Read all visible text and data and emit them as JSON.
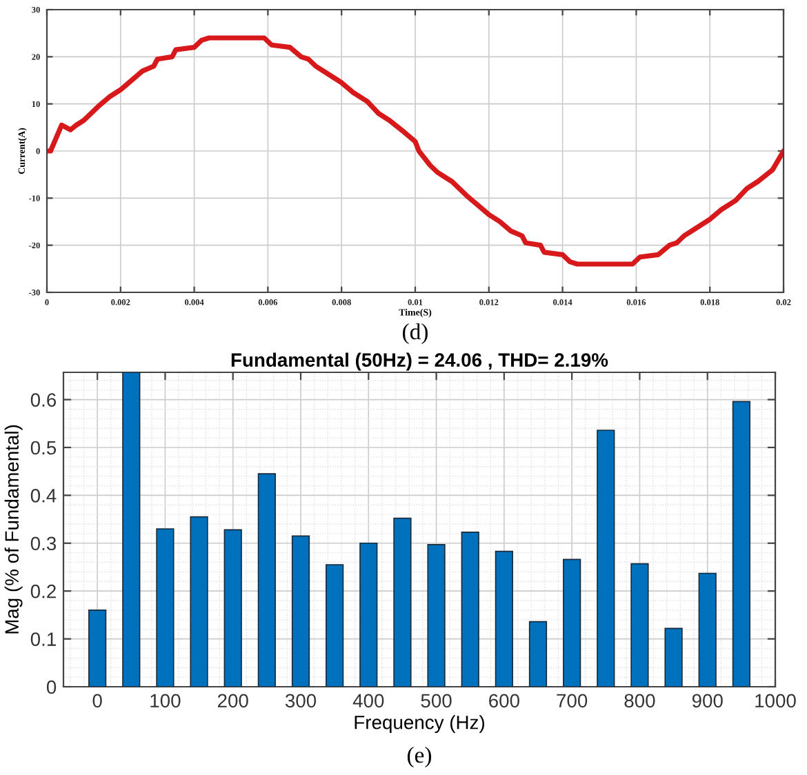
{
  "chart_data": [
    {
      "type": "line",
      "xlabel": "Time(S)",
      "ylabel": "Current(A)",
      "annotations": [
        "(d)"
      ],
      "grid": true,
      "series": [
        {
          "color": "#d7191c",
          "x": [
            0,
            0.0001,
            0.0004,
            0.00064,
            0.0008,
            0.001,
            0.0012,
            0.0014,
            0.0017,
            0.002,
            0.0023,
            0.0026,
            0.0029,
            0.003,
            0.0034,
            0.0035,
            0.004,
            0.0042,
            0.0044,
            0.0059,
            0.0061,
            0.0066,
            0.0069,
            0.0071,
            0.0073,
            0.0077,
            0.008,
            0.0083,
            0.0087,
            0.009,
            0.0093,
            0.0097,
            0.01,
            0.0101,
            0.0104,
            0.0106,
            0.0108,
            0.011,
            0.0112,
            0.0114,
            0.0117,
            0.012,
            0.0123,
            0.0126,
            0.0129,
            0.013,
            0.0134,
            0.0135,
            0.014,
            0.0142,
            0.0144,
            0.0159,
            0.0161,
            0.0166,
            0.0169,
            0.0171,
            0.0173,
            0.0177,
            0.018,
            0.0183,
            0.0187,
            0.019,
            0.0193,
            0.0197,
            0.02
          ],
          "values": [
            0,
            0,
            5.5,
            4.5,
            5.5,
            6.5,
            8,
            9.5,
            11.5,
            13,
            15,
            17,
            18,
            19.5,
            20,
            21.5,
            22,
            23.5,
            24,
            24,
            22.5,
            22,
            20,
            19.5,
            18,
            16,
            14.5,
            12.5,
            10.5,
            8,
            6.5,
            4,
            2,
            0,
            -3,
            -4.5,
            -5.5,
            -6.5,
            -8,
            -9.5,
            -11.5,
            -13.5,
            -15,
            -17,
            -18,
            -19.5,
            -20,
            -21.5,
            -22,
            -23.5,
            -24,
            -24,
            -22.5,
            -22,
            -20,
            -19.5,
            -18,
            -16,
            -14.5,
            -12.5,
            -10.5,
            -8,
            -6.5,
            -4,
            0
          ]
        }
      ],
      "xlim": [
        0,
        0.02
      ],
      "xticks": [
        0,
        0.002,
        0.004,
        0.006,
        0.008,
        0.01,
        0.012,
        0.014,
        0.016,
        0.018,
        0.02
      ],
      "ylim": [
        -30,
        30
      ],
      "yticks": [
        -30,
        -20,
        -10,
        0,
        10,
        20,
        30
      ]
    },
    {
      "type": "bar",
      "title": "Fundamental (50Hz) = 24.06 , THD= 2.19%",
      "xlabel": "Frequency (Hz)",
      "ylabel": "Mag (% of Fundamental)",
      "annotations": [
        "(e)"
      ],
      "grid": true,
      "color": "#0072bd",
      "x": [
        0,
        50,
        100,
        150,
        200,
        250,
        300,
        350,
        400,
        450,
        500,
        550,
        600,
        650,
        700,
        750,
        800,
        850,
        900,
        950
      ],
      "values": [
        0.16,
        0.657,
        0.33,
        0.355,
        0.328,
        0.445,
        0.315,
        0.255,
        0.3,
        0.352,
        0.297,
        0.323,
        0.283,
        0.136,
        0.266,
        0.536,
        0.257,
        0.122,
        0.237,
        0.596
      ],
      "xlim": [
        -50,
        1000
      ],
      "xticks": [
        0,
        100,
        200,
        300,
        400,
        500,
        600,
        700,
        800,
        900,
        1000
      ],
      "ylim": [
        0,
        0.657
      ],
      "yticks": [
        0,
        0.1,
        0.2,
        0.3,
        0.4,
        0.5,
        0.6
      ]
    }
  ]
}
